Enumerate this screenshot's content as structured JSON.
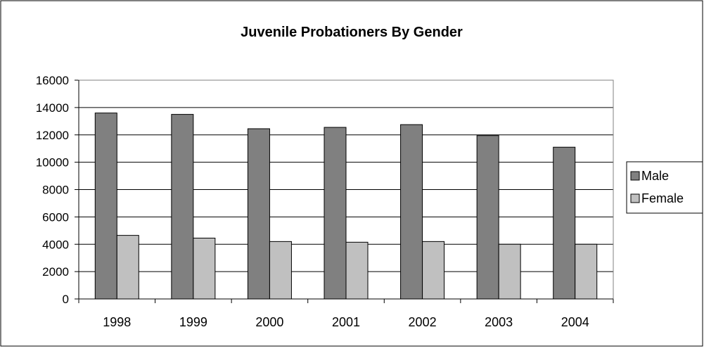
{
  "chart_data": {
    "type": "bar",
    "title": "Juvenile Probationers By Gender",
    "xlabel": "",
    "ylabel": "",
    "categories": [
      "1998",
      "1999",
      "2000",
      "2001",
      "2002",
      "2003",
      "2004"
    ],
    "series": [
      {
        "name": "Male",
        "values": [
          13600,
          13500,
          12450,
          12550,
          12750,
          11950,
          11100
        ],
        "color": "#808080"
      },
      {
        "name": "Female",
        "values": [
          4650,
          4450,
          4200,
          4150,
          4200,
          4000,
          4000
        ],
        "color": "#c0c0c0"
      }
    ],
    "ylim": [
      0,
      16000
    ],
    "yticks": [
      "0",
      "2000",
      "4000",
      "6000",
      "8000",
      "10000",
      "12000",
      "14000",
      "16000"
    ],
    "grid": true,
    "legend_position": "right"
  }
}
